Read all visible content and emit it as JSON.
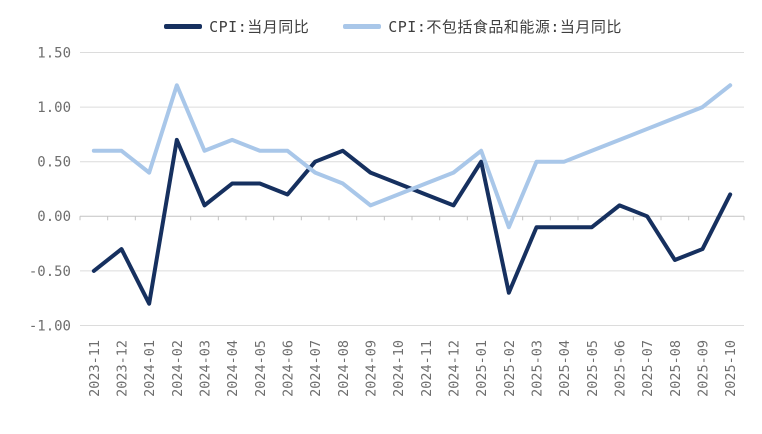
{
  "legend": {
    "series1_label": "CPI:当月同比",
    "series2_label": "CPI:不包括食品和能源:当月同比"
  },
  "colors": {
    "series1": "#16305f",
    "series2": "#a9c7e9",
    "gridline": "#dcdcdc",
    "axis_line": "#c3c3c3",
    "axis_text": "#6e6e6e",
    "legend_text": "#3f3f3f",
    "background": "#ffffff"
  },
  "chart_data": {
    "type": "line",
    "title": "",
    "xlabel": "",
    "ylabel": "",
    "categories": [
      "2023-11",
      "2023-12",
      "2024-01",
      "2024-02",
      "2024-03",
      "2024-04",
      "2024-05",
      "2024-06",
      "2024-07",
      "2024-08",
      "2024-09",
      "2024-10",
      "2024-11",
      "2024-12",
      "2025-01",
      "2025-02",
      "2025-03",
      "2025-04",
      "2025-05",
      "2025-06",
      "2025-07",
      "2025-08",
      "2025-09",
      "2025-10"
    ],
    "series": [
      {
        "name": "CPI:当月同比",
        "color": "#16305f",
        "values": [
          -0.5,
          -0.3,
          -0.8,
          0.7,
          0.1,
          0.3,
          0.3,
          0.2,
          0.5,
          0.6,
          0.4,
          0.3,
          0.2,
          0.1,
          0.5,
          -0.7,
          -0.1,
          -0.1,
          -0.1,
          0.1,
          0.0,
          -0.4,
          -0.3,
          0.2
        ]
      },
      {
        "name": "CPI:不包括食品和能源:当月同比",
        "color": "#a9c7e9",
        "values": [
          0.6,
          0.6,
          0.4,
          1.2,
          0.6,
          0.7,
          0.6,
          0.6,
          0.4,
          0.3,
          0.1,
          0.2,
          0.3,
          0.4,
          0.6,
          -0.1,
          0.5,
          0.5,
          0.6,
          0.7,
          0.8,
          0.9,
          1.0,
          1.2
        ]
      }
    ],
    "y_ticks": [
      {
        "label": "1.50",
        "value": 1.5
      },
      {
        "label": "1.00",
        "value": 1.0
      },
      {
        "label": "0.50",
        "value": 0.5
      },
      {
        "label": "0.00",
        "value": 0.0
      },
      {
        "label": "-0.50",
        "value": -0.5
      },
      {
        "label": "-1.00",
        "value": -1.0
      }
    ],
    "ylim": [
      -1.0,
      1.5
    ],
    "grid": true,
    "legend_position": "top",
    "x_label_rotation": -90
  }
}
